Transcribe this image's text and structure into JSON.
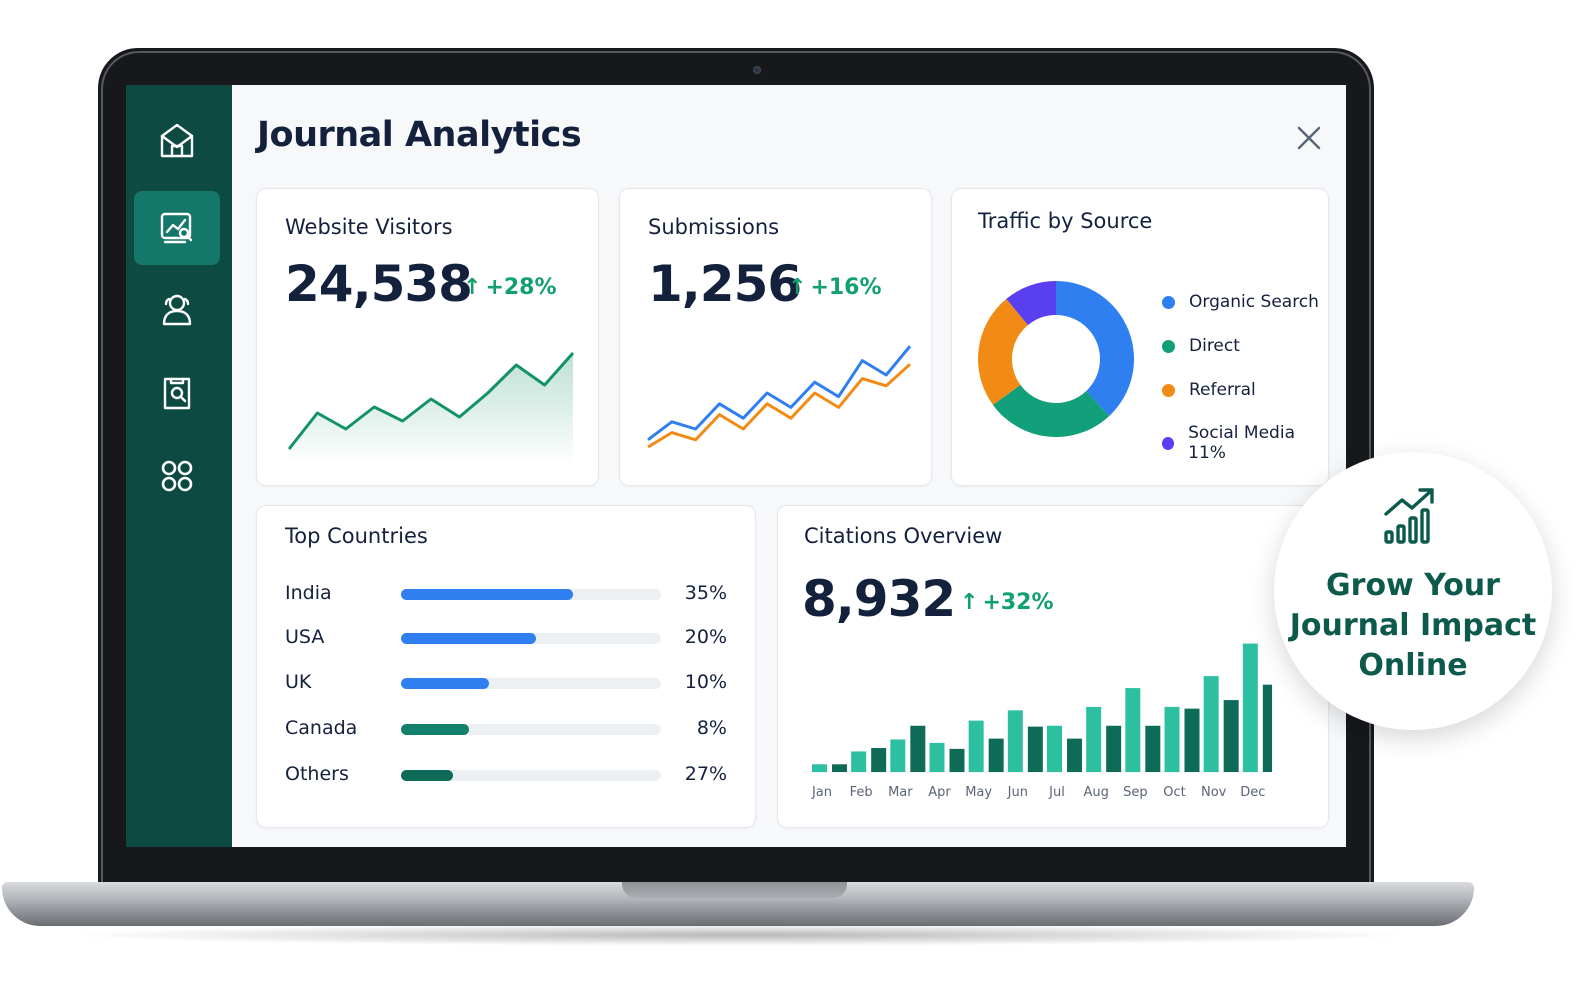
{
  "app": {
    "title": "Journal Analytics"
  },
  "sidebar": {
    "items": [
      {
        "icon": "home-envelope-icon",
        "active": false
      },
      {
        "icon": "analytics-icon",
        "active": true
      },
      {
        "icon": "users-icon",
        "active": false
      },
      {
        "icon": "search-document-icon",
        "active": false
      },
      {
        "icon": "apps-grid-icon",
        "active": false
      }
    ]
  },
  "cards": {
    "visitors": {
      "title": "Website Visitors",
      "value": "24,538",
      "delta": "+28%",
      "delta_icon": "arrow-up-icon",
      "chart_color": "#12916a"
    },
    "submissions": {
      "title": "Submissions",
      "value": "1,256",
      "delta": "+16%",
      "delta_icon": "arrow-up-icon",
      "series_colors": [
        "#2f7ff0",
        "#f28b16"
      ]
    },
    "traffic": {
      "title": "Traffic by Source",
      "legend": [
        {
          "label": "Organic Search",
          "color": "#2f7ff0"
        },
        {
          "label": "Direct",
          "color": "#12a07a"
        },
        {
          "label": "Referral",
          "color": "#f28b16"
        },
        {
          "label": "Social Media 11%",
          "color": "#5a3ff0"
        }
      ]
    },
    "countries": {
      "title": "Top Countries",
      "rows": [
        {
          "name": "India",
          "pct": "35%",
          "fill": 0.66,
          "color": "#2f7ff0"
        },
        {
          "name": "USA",
          "pct": "20%",
          "fill": 0.52,
          "color": "#2f7ff0"
        },
        {
          "name": "UK",
          "pct": "10%",
          "fill": 0.34,
          "color": "#2f7ff0"
        },
        {
          "name": "Canada",
          "pct": "8%",
          "fill": 0.26,
          "color": "#12806a"
        },
        {
          "name": "Others",
          "pct": "27%",
          "fill": 0.2,
          "color": "#0e6a58"
        }
      ]
    },
    "citations": {
      "title": "Citations Overview",
      "value": "8,932",
      "delta": "+32%",
      "delta_icon": "arrow-up-icon"
    }
  },
  "promo": {
    "icon": "growth-chart-icon",
    "text": "Grow Your\nJournal Impact\nOnline"
  },
  "chart_data": [
    {
      "type": "area",
      "x": [
        1,
        2,
        3,
        4,
        5,
        6,
        7,
        8,
        9,
        10,
        11
      ],
      "values": [
        0,
        18,
        10,
        21,
        14,
        25,
        16,
        28,
        42,
        32,
        48
      ],
      "ylim": [
        0,
        50
      ]
    },
    {
      "type": "line",
      "x": [
        1,
        2,
        3,
        4,
        5,
        6,
        7,
        8,
        9,
        10,
        11,
        12
      ],
      "series": [
        {
          "values": [
            4,
            14,
            10,
            24,
            16,
            30,
            22,
            36,
            28,
            48,
            40,
            56
          ]
        },
        {
          "values": [
            0,
            8,
            4,
            18,
            10,
            24,
            16,
            30,
            22,
            38,
            34,
            46
          ]
        }
      ],
      "ylim": [
        0,
        60
      ]
    },
    {
      "type": "pie",
      "labels": [
        "Organic Search",
        "Direct",
        "Referral",
        "Social Media"
      ],
      "values": [
        38,
        27,
        24,
        11
      ],
      "colors": [
        "#2f7ff0",
        "#12a07a",
        "#f28b16",
        "#5a3ff0"
      ]
    },
    {
      "type": "bar",
      "categories": [
        "Jan",
        "Feb",
        "Mar",
        "Apr",
        "May",
        "Jun",
        "Jul",
        "Aug",
        "Sep",
        "Oct",
        "Nov",
        "Dec"
      ],
      "series": [
        {
          "values": [
            9,
            24,
            38,
            34,
            60,
            72,
            54,
            76,
            98,
            76,
            112,
            150
          ]
        },
        {
          "values": [
            9,
            28,
            54,
            27,
            39,
            53,
            39,
            54,
            54,
            74,
            84,
            102
          ]
        }
      ],
      "colors": [
        "#2cc0a0",
        "#0d6b58"
      ],
      "ylim": [
        0,
        160
      ]
    }
  ]
}
